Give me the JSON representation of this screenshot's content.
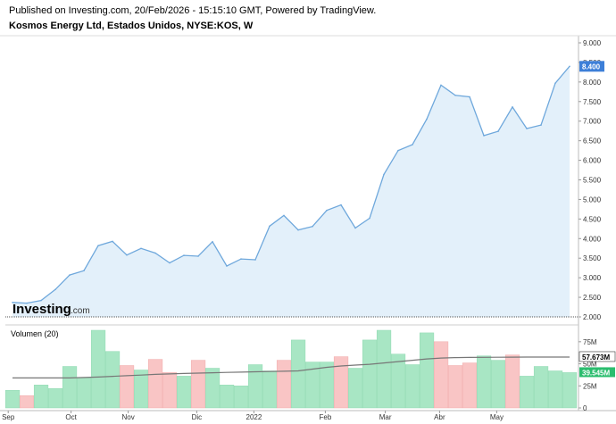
{
  "header": {
    "published": "Published on Investing.com, 20/Feb/2026 - 15:15:10 GMT, Powered by TradingView.",
    "symbol": "Kosmos Energy Ltd, Estados Unidos, NYSE:KOS, W"
  },
  "logo": {
    "main": "Investing",
    "suffix": ".com"
  },
  "colors": {
    "price_line": "#6fa8dc",
    "price_fill": "#e3f0fa",
    "up": "#a8e6c4",
    "down": "#f9c5c5",
    "ma": "#777777",
    "last_price_badge": "#3d7fd8",
    "last_volume_badge": "#2bbd6e"
  },
  "chart_data": [
    {
      "type": "line",
      "title": "Kosmos Energy Ltd, Estados Unidos, NYSE:KOS, W",
      "x_labels": [
        "Sep",
        "Oct",
        "Nov",
        "Dic",
        "2022",
        "Feb",
        "Mar",
        "Abr",
        "May"
      ],
      "y_ticks": [
        "2.000",
        "2.500",
        "3.000",
        "3.500",
        "4.000",
        "4.500",
        "5.000",
        "5.500",
        "6.000",
        "6.500",
        "7.000",
        "7.500",
        "8.000",
        "8.500",
        "9.000"
      ],
      "ylim": [
        2.0,
        9.0
      ],
      "last_value_label": "8.400",
      "values": [
        2.37,
        2.35,
        2.42,
        2.7,
        3.07,
        3.18,
        3.82,
        3.93,
        3.58,
        3.75,
        3.63,
        3.38,
        3.57,
        3.55,
        3.92,
        3.3,
        3.48,
        3.46,
        4.32,
        4.59,
        4.22,
        4.31,
        4.72,
        4.86,
        4.27,
        4.52,
        5.64,
        6.25,
        6.4,
        7.05,
        7.92,
        7.66,
        7.62,
        6.63,
        6.74,
        7.36,
        6.81,
        6.9,
        7.97,
        8.4
      ]
    },
    {
      "type": "bar",
      "title": "Volumen (20)",
      "y_ticks": [
        "0",
        "25M",
        "50M",
        "75M"
      ],
      "ylim": [
        0,
        90
      ],
      "last_ma_label": "57.673M",
      "last_volume_label": "39.545M",
      "values": [
        20,
        14,
        26,
        22,
        47,
        34,
        88,
        64,
        48,
        43,
        55,
        40,
        36,
        54,
        45,
        26,
        25,
        49,
        42,
        54,
        77,
        52,
        52,
        58,
        45,
        77,
        88,
        61,
        49,
        85,
        75,
        48,
        51,
        59,
        54,
        60,
        36,
        47,
        42,
        40
      ],
      "direction": [
        "up",
        "down",
        "up",
        "up",
        "up",
        "up",
        "up",
        "up",
        "down",
        "up",
        "down",
        "down",
        "up",
        "down",
        "up",
        "up",
        "up",
        "up",
        "up",
        "down",
        "up",
        "up",
        "up",
        "down",
        "up",
        "up",
        "up",
        "up",
        "up",
        "up",
        "down",
        "down",
        "down",
        "up",
        "up",
        "down",
        "up",
        "up",
        "up",
        "up"
      ],
      "ma": [
        34,
        34,
        34,
        34,
        34,
        34.5,
        35,
        35.8,
        36.5,
        37.2,
        38,
        38.5,
        39,
        39.4,
        39.8,
        40.2,
        40.6,
        41,
        41.3,
        41.6,
        42,
        44,
        46,
        47.5,
        48.5,
        49.5,
        51,
        52.5,
        54,
        55.5,
        56.5,
        57,
        57.2,
        57.3,
        57.4,
        57.5,
        57.6,
        57.6,
        57.67,
        57.67
      ]
    }
  ]
}
